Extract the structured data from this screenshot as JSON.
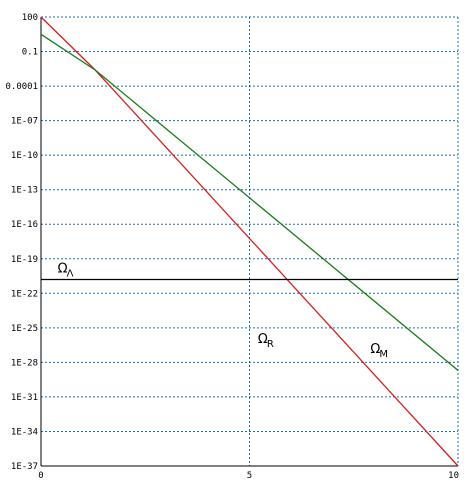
{
  "chart_data": {
    "type": "line",
    "title": "",
    "xlabel": "",
    "ylabel": "",
    "xlim": [
      0,
      10
    ],
    "y_scale": "log",
    "ylim_log10": [
      -37,
      2
    ],
    "grid": true,
    "grid_color": "#1a6fa8",
    "x_ticks": [
      {
        "value": 0,
        "label": "0"
      },
      {
        "value": 5,
        "label": "5"
      },
      {
        "value": 10,
        "label": "10"
      }
    ],
    "y_ticks": [
      {
        "log10": 2,
        "label": "100"
      },
      {
        "log10": -1,
        "label": "0.1"
      },
      {
        "log10": -4,
        "label": "0.0001"
      },
      {
        "log10": -7,
        "label": "1E-07"
      },
      {
        "log10": -10,
        "label": "1E-10"
      },
      {
        "log10": -13,
        "label": "1E-13"
      },
      {
        "log10": -16,
        "label": "1E-16"
      },
      {
        "log10": -19,
        "label": "1E-19"
      },
      {
        "log10": -22,
        "label": "1E-22"
      },
      {
        "log10": -25,
        "label": "1E-25"
      },
      {
        "log10": -28,
        "label": "1E-28"
      },
      {
        "log10": -31,
        "label": "1E-31"
      },
      {
        "log10": -34,
        "label": "1E-34"
      },
      {
        "log10": -37,
        "label": "1E-37"
      }
    ],
    "series": [
      {
        "label_main": "Ω",
        "label_sub": "R",
        "color": "#d42020",
        "x": [
          0,
          1.3,
          10
        ],
        "log10_y": [
          2,
          -2.6,
          -37
        ],
        "label_at": {
          "x": 5.2,
          "log10_y": -26.3
        }
      },
      {
        "label_main": "Ω",
        "label_sub": "M",
        "color": "#1a7a1a",
        "x": [
          0,
          1.3,
          10
        ],
        "log10_y": [
          0.5,
          -2.6,
          -28.7
        ],
        "label_at": {
          "x": 7.9,
          "log10_y": -27.2
        }
      },
      {
        "label_main": "Ω",
        "label_sub": "Λ",
        "color": "#000000",
        "x": [
          0,
          10
        ],
        "log10_y": [
          -20.8,
          -20.8
        ],
        "label_at": {
          "x": 0.4,
          "log10_y": -20.2
        }
      }
    ]
  }
}
